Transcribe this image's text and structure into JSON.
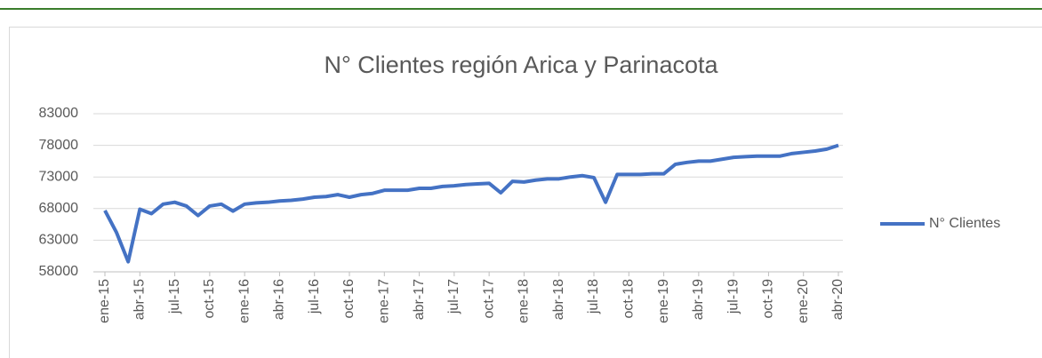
{
  "chart_data": {
    "type": "line",
    "title": "N° Clientes región Arica y Parinacota",
    "categories": [
      "ene-15",
      null,
      null,
      "abr-15",
      null,
      null,
      "jul-15",
      null,
      null,
      "oct-15",
      null,
      null,
      "ene-16",
      null,
      null,
      "abr-16",
      null,
      null,
      "jul-16",
      null,
      null,
      "oct-16",
      null,
      null,
      "ene-17",
      null,
      null,
      "abr-17",
      null,
      null,
      "jul-17",
      null,
      null,
      "oct-17",
      null,
      null,
      "ene-18",
      null,
      null,
      "abr-18",
      null,
      null,
      "jul-18",
      null,
      null,
      "oct-18",
      null,
      null,
      "ene-19",
      null,
      null,
      "abr-19",
      null,
      null,
      "jul-19",
      null,
      null,
      "oct-19",
      null,
      null,
      "ene-20",
      null,
      null,
      "abr-20"
    ],
    "series": [
      {
        "name": "N° Clientes",
        "color": "#4472c4",
        "values": [
          67700,
          64200,
          59600,
          67900,
          67200,
          68700,
          69000,
          68400,
          66900,
          68400,
          68700,
          67600,
          68700,
          68900,
          69000,
          69200,
          69300,
          69500,
          69800,
          69900,
          70200,
          69800,
          70200,
          70400,
          70900,
          70900,
          70900,
          71200,
          71200,
          71500,
          71600,
          71800,
          71900,
          72000,
          70500,
          72300,
          72200,
          72500,
          72700,
          72700,
          73000,
          73200,
          72900,
          69000,
          73400,
          73400,
          73400,
          73500,
          73500,
          75000,
          75300,
          75500,
          75500,
          75800,
          76100,
          76200,
          76300,
          76300,
          76300,
          76700,
          76900,
          77100,
          77400,
          78000
        ]
      }
    ],
    "ylim": [
      58000,
      83000
    ],
    "yticks": [
      58000,
      63000,
      68000,
      73000,
      78000,
      83000
    ],
    "grid": true,
    "legend": "right"
  }
}
